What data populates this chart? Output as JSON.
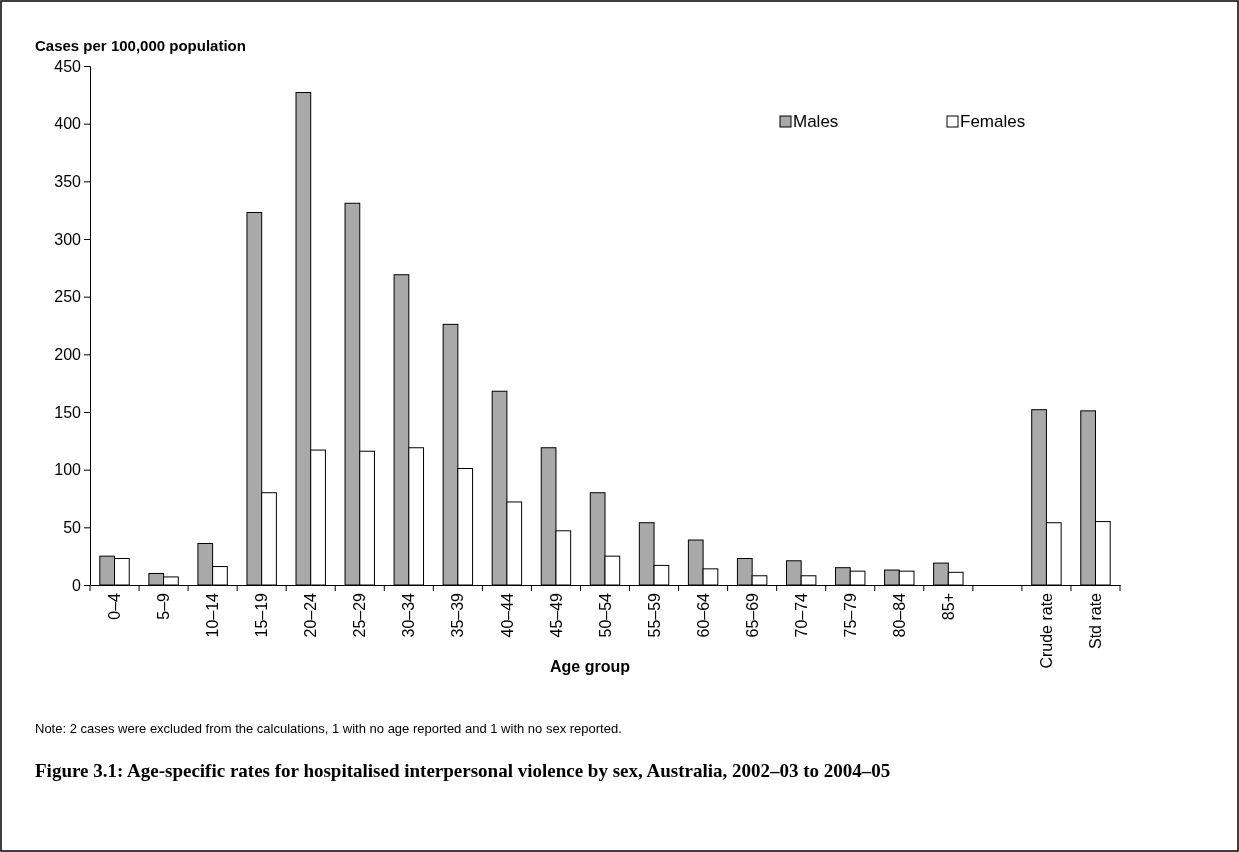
{
  "chart_data": {
    "type": "bar",
    "title": "Figure 3.1: Age-specific rates for hospitalised interpersonal violence by sex, Australia, 2002–03 to 2004–05",
    "ylabel": "Cases per 100,000 population",
    "xlabel": "Age group",
    "annotations": [
      "Note: 2 cases were excluded from the calculations, 1 with no age reported and 1 with no sex reported."
    ],
    "categories": [
      "0–4",
      "5–9",
      "10–14",
      "15–19",
      "20–24",
      "25–29",
      "30–34",
      "35–39",
      "40–44",
      "45–49",
      "50–54",
      "55–59",
      "60–64",
      "65–69",
      "70–74",
      "75–79",
      "80–84",
      "85+",
      null,
      "Crude rate",
      "Std rate"
    ],
    "series": [
      {
        "name": "Males",
        "color": "#a9a9a9",
        "values": [
          25,
          10,
          36,
          323,
          427,
          331,
          269,
          226,
          168,
          119,
          80,
          54,
          39,
          23,
          21,
          15,
          13,
          19,
          null,
          152,
          151
        ]
      },
      {
        "name": "Females",
        "color": "#ffffff",
        "values": [
          23,
          7,
          16,
          80,
          117,
          116,
          119,
          101,
          72,
          47,
          25,
          17,
          14,
          8,
          8,
          12,
          12,
          11,
          null,
          54,
          55
        ]
      }
    ],
    "ylim": [
      0,
      450
    ],
    "yticks": [
      0,
      50,
      100,
      150,
      200,
      250,
      300,
      350,
      400,
      450
    ],
    "grid": false,
    "legend": "top right"
  }
}
